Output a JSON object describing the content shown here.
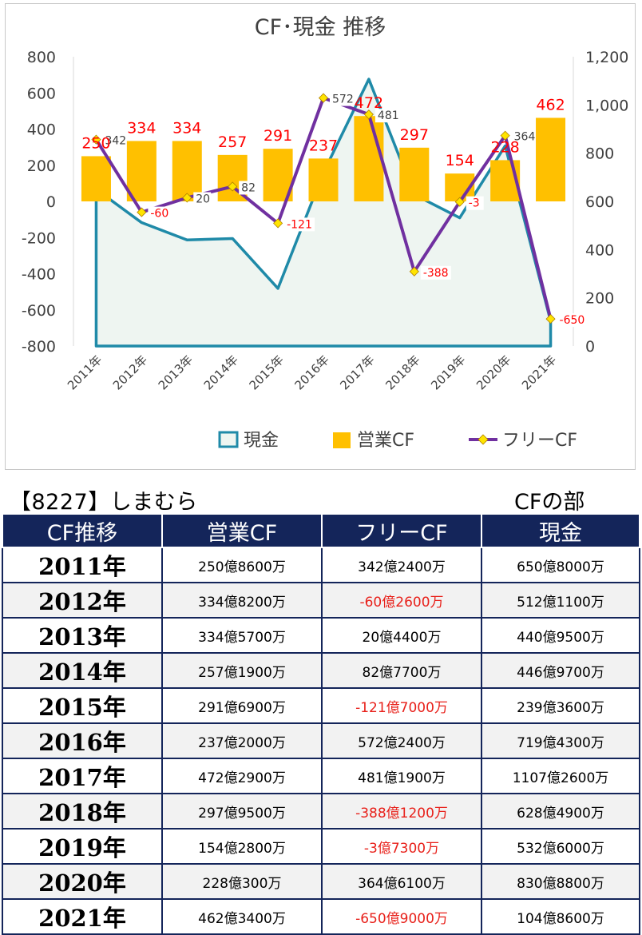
{
  "chart_data": {
    "type": "combo",
    "title": "CF･現金 推移",
    "categories": [
      "2011年",
      "2012年",
      "2013年",
      "2014年",
      "2015年",
      "2016年",
      "2017年",
      "2018年",
      "2019年",
      "2020年",
      "2021年"
    ],
    "left_axis": {
      "min": -800,
      "max": 800,
      "ticks": [
        "800",
        "600",
        "400",
        "200",
        "0",
        "-200",
        "-400",
        "-600",
        "-800"
      ]
    },
    "right_axis": {
      "min": 0,
      "max": 1200,
      "ticks": [
        "1,200",
        "1,000",
        "800",
        "600",
        "400",
        "200",
        "0"
      ]
    },
    "series": [
      {
        "name": "現金",
        "type": "area",
        "axis": "right",
        "color": "#1f8aa8",
        "fill": "#eef5f1",
        "values": [
          650,
          512,
          440,
          446,
          239,
          719,
          1107,
          628,
          532,
          830,
          104
        ]
      },
      {
        "name": "営業CF",
        "type": "bar",
        "axis": "left",
        "color": "#ffc000",
        "values": [
          250,
          334,
          334,
          257,
          291,
          237,
          472,
          297,
          154,
          228,
          462
        ],
        "labels": [
          "250",
          "334",
          "334",
          "257",
          "291",
          "237",
          "472",
          "297",
          "154",
          "228",
          "462"
        ],
        "label_color": "#ff0000"
      },
      {
        "name": "フリーCF",
        "type": "line",
        "axis": "left",
        "color": "#7030a0",
        "marker_color": "#ffe400",
        "values": [
          342,
          -60,
          20,
          82,
          -121,
          572,
          481,
          -388,
          -3,
          364,
          -650
        ],
        "labels": [
          "342",
          "-60",
          "20",
          "82",
          "-121",
          "572",
          "481",
          "-388",
          "-3",
          "364",
          "-650"
        ]
      }
    ],
    "grid": false,
    "legend_position": "bottom"
  },
  "company_label": "【8227】しまむら",
  "section_label": "CFの部",
  "table": {
    "headers": [
      "CF推移",
      "営業CF",
      "フリーCF",
      "現金"
    ],
    "rows": [
      {
        "year": "2011年",
        "op": "250億8600万",
        "free": "342億2400万",
        "cash": "650億8000万",
        "free_neg": false
      },
      {
        "year": "2012年",
        "op": "334億8200万",
        "free": "-60億2600万",
        "cash": "512億1100万",
        "free_neg": true
      },
      {
        "year": "2013年",
        "op": "334億5700万",
        "free": "20億4400万",
        "cash": "440億9500万",
        "free_neg": false
      },
      {
        "year": "2014年",
        "op": "257億1900万",
        "free": "82億7700万",
        "cash": "446億9700万",
        "free_neg": false
      },
      {
        "year": "2015年",
        "op": "291億6900万",
        "free": "-121億7000万",
        "cash": "239億3600万",
        "free_neg": true
      },
      {
        "year": "2016年",
        "op": "237億2000万",
        "free": "572億2400万",
        "cash": "719億4300万",
        "free_neg": false
      },
      {
        "year": "2017年",
        "op": "472億2900万",
        "free": "481億1900万",
        "cash": "1107億2600万",
        "free_neg": false
      },
      {
        "year": "2018年",
        "op": "297億9500万",
        "free": "-388億1200万",
        "cash": "628億4900万",
        "free_neg": true
      },
      {
        "year": "2019年",
        "op": "154億2800万",
        "free": "-3億7300万",
        "cash": "532億6000万",
        "free_neg": true
      },
      {
        "year": "2020年",
        "op": "228億300万",
        "free": "364億6100万",
        "cash": "830億8800万",
        "free_neg": false
      },
      {
        "year": "2021年",
        "op": "462億3400万",
        "free": "-650億9000万",
        "cash": "104億8600万",
        "free_neg": true
      }
    ]
  }
}
